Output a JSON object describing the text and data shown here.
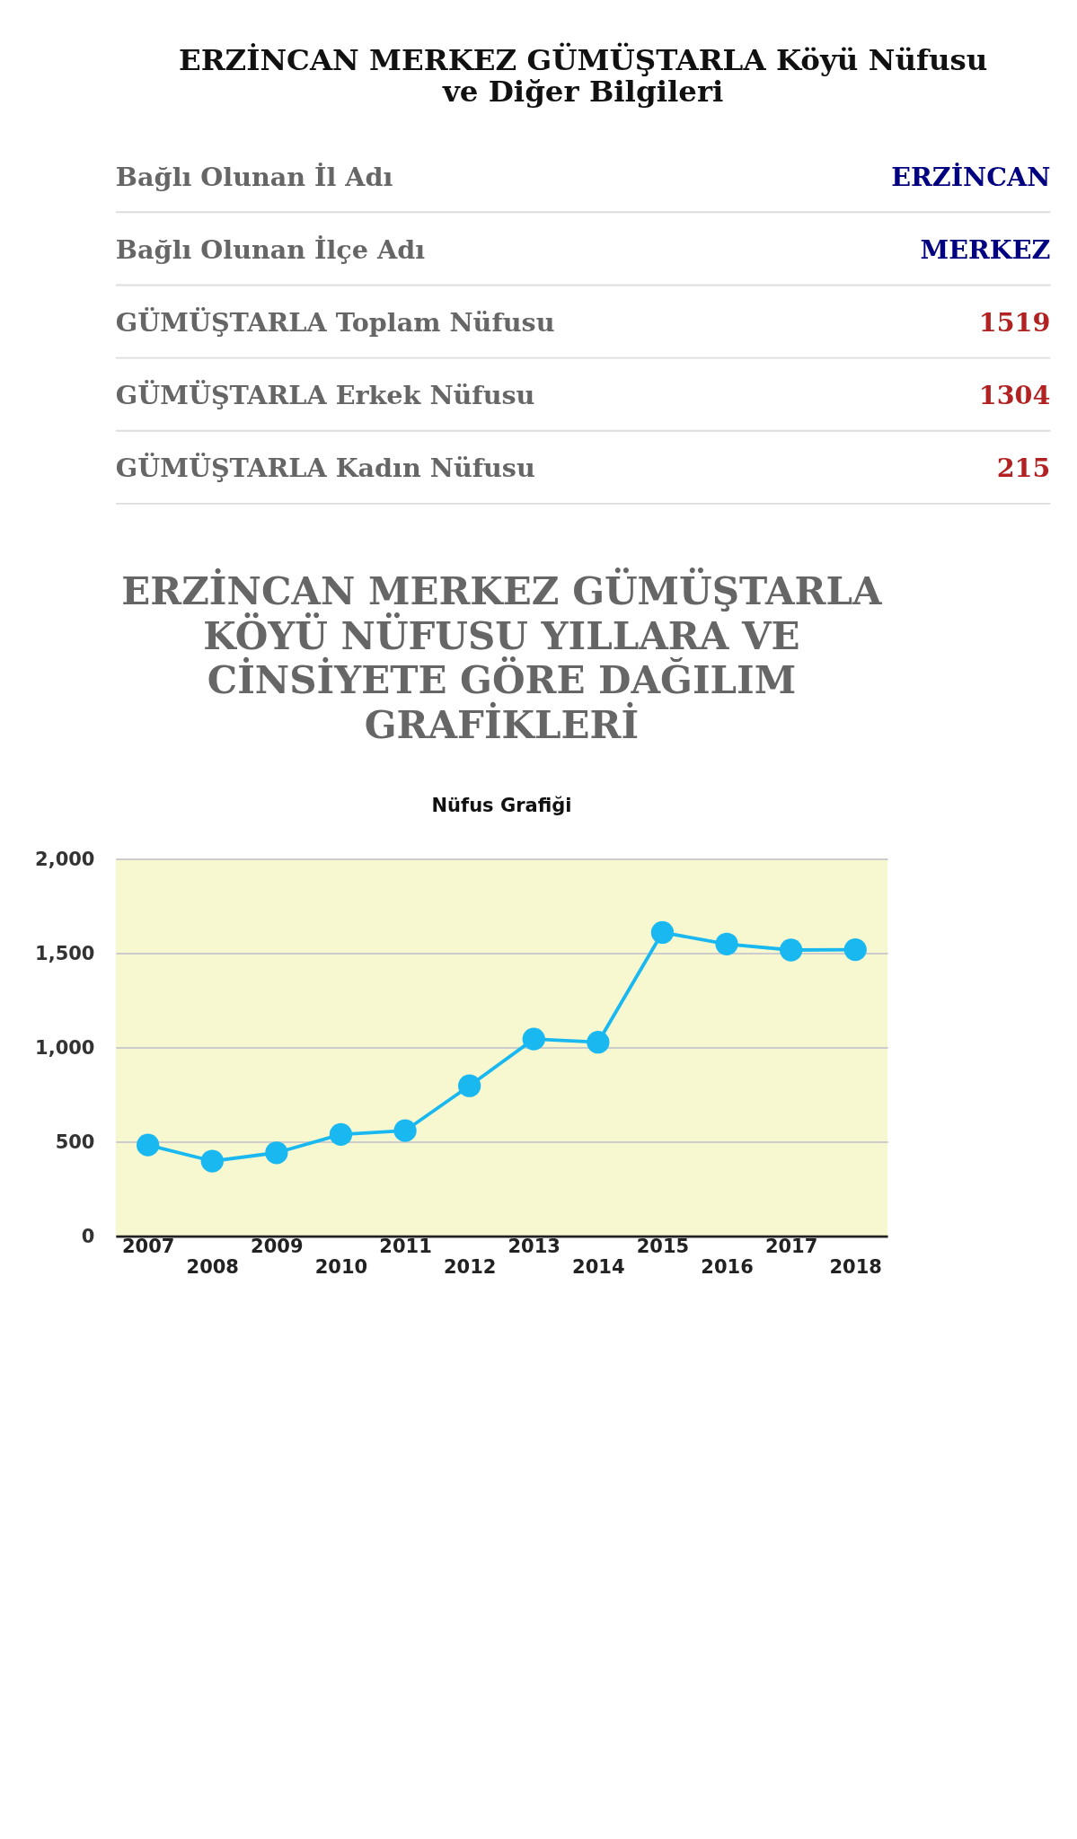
{
  "chart_data": [
    {
      "type": "other",
      "title": "ERZİNCAN MERKEZ GÜMÜŞTARLA Köyü Nüfusu ve Diğer Bilgileri",
      "annotations": [
        "Bağlı Olunan İl Adı",
        "ERZİNCAN",
        "Bağlı Olunan İlçe Adı",
        "MERKEZ",
        "GÜMÜŞTARLA Toplam Nüfusu",
        "1519",
        "GÜMÜŞTARLA Erkek Nüfusu",
        "1304",
        "GÜMÜŞTARLA Kadın Nüfusu",
        "215"
      ]
    },
    {
      "type": "line",
      "title": "ERZİNCAN MERKEZ GÜMÜŞTARLA KÖYÜ NÜFUSU YILLARA VE CİNSİYETE GÖRE DAĞILIM GRAFİKLERİ",
      "subtitle": "Nüfus Grafiği",
      "categories": [
        "2007",
        "2008",
        "2009",
        "2010",
        "2011",
        "2012",
        "2013",
        "2014",
        "2015",
        "2016",
        "2017",
        "2018"
      ],
      "series": [
        {
          "color": "#1ab8f0",
          "values": [
            483,
            398,
            442,
            539,
            559,
            797,
            1045,
            1028,
            1610,
            1549,
            1517,
            1519
          ]
        }
      ],
      "ylim": [
        0,
        2000
      ],
      "yticks": [
        0,
        {
          "value": 500,
          "label": "500"
        },
        {
          "value": 1000,
          "label": "1,000"
        },
        {
          "value": 1500,
          "label": "1,500"
        },
        {
          "value": 2000,
          "label": "2,000"
        }
      ],
      "grid": "y",
      "marker": "circle",
      "line_style": "solid"
    }
  ]
}
